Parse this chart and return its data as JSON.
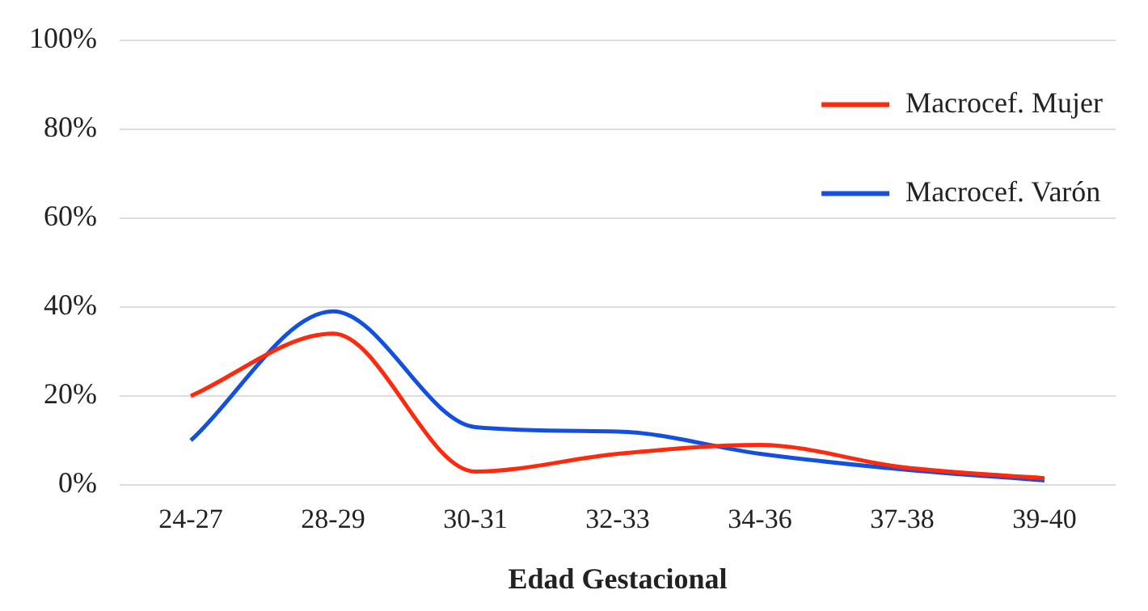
{
  "chart_data": {
    "type": "line",
    "xlabel": "Edad Gestacional",
    "categories": [
      "24-27",
      "28-29",
      "30-31",
      "32-33",
      "34-36",
      "37-38",
      "39-40"
    ],
    "series": [
      {
        "name": "Macrocef. Mujer",
        "color": "#ff2a0d",
        "values": [
          20,
          34,
          3,
          7,
          9,
          4,
          1.5
        ]
      },
      {
        "name": "Macrocef. Varón",
        "color": "#1450e0",
        "values": [
          10,
          39,
          13,
          12,
          7,
          3.5,
          1
        ]
      }
    ],
    "ylim": [
      0,
      100
    ],
    "yticks": [
      {
        "value": 0,
        "label": "0%"
      },
      {
        "value": 20,
        "label": "20%"
      },
      {
        "value": 40,
        "label": "40%"
      },
      {
        "value": 60,
        "label": "60%"
      },
      {
        "value": 80,
        "label": "80%"
      },
      {
        "value": 100,
        "label": "100%"
      }
    ],
    "grid": "y",
    "legend": "top right",
    "marker": "none",
    "line_style": "solid"
  }
}
